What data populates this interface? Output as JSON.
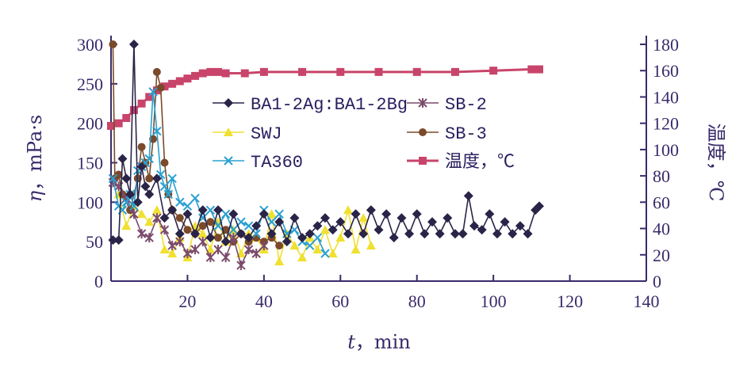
{
  "chart_data": {
    "type": "line",
    "xlabel_var": "t",
    "xlabel_unit": "min",
    "xlim": [
      0,
      140
    ],
    "x_ticks": [
      "20",
      "40",
      "60",
      "80",
      "100",
      "120",
      "140"
    ],
    "ylabel_var": "η",
    "ylabel_unit": "mPa·s",
    "ylim": [
      0,
      300
    ],
    "y_ticks": [
      "0",
      "50",
      "100",
      "150",
      "200",
      "250",
      "300"
    ],
    "y2label": "温度，℃",
    "y2lim": [
      0,
      180
    ],
    "y2_ticks": [
      "0",
      "20",
      "40",
      "60",
      "80",
      "100",
      "120",
      "140",
      "160",
      "180"
    ],
    "grid": false,
    "legend_position": "upper-center",
    "series": [
      {
        "name": "BA1-2Ag:BA1-2Bg",
        "marker": "diamond",
        "color": "#2a2448",
        "axis": "left",
        "x": [
          0.5,
          2,
          3,
          4,
          5,
          6,
          7,
          8,
          9,
          10,
          12,
          14,
          16,
          18,
          20,
          22,
          24,
          26,
          28,
          30,
          32,
          34,
          36,
          38,
          40,
          42,
          44,
          46,
          48,
          50,
          52,
          54,
          56,
          58,
          60,
          62,
          64,
          66,
          68,
          70,
          72,
          74,
          76,
          78,
          80,
          82,
          84,
          86,
          88,
          90,
          92,
          93.5,
          95,
          97,
          99,
          101,
          103,
          105,
          107,
          109,
          111,
          112
        ],
        "y": [
          52,
          52,
          155,
          130,
          110,
          300,
          100,
          145,
          120,
          110,
          130,
          80,
          90,
          60,
          85,
          60,
          90,
          55,
          90,
          50,
          85,
          60,
          55,
          70,
          85,
          60,
          75,
          50,
          80,
          55,
          60,
          70,
          80,
          65,
          75,
          60,
          85,
          60,
          90,
          65,
          85,
          55,
          80,
          60,
          85,
          60,
          75,
          60,
          80,
          60,
          60,
          108,
          70,
          65,
          85,
          60,
          75,
          60,
          70,
          60,
          90,
          95
        ]
      },
      {
        "name": "SB-2",
        "marker": "star",
        "color": "#7a4a6a",
        "axis": "left",
        "x": [
          0.5,
          2,
          4,
          6,
          8,
          10,
          12,
          14,
          16,
          18,
          20,
          22,
          24,
          26,
          28,
          30,
          32,
          34,
          36,
          38,
          40
        ],
        "y": [
          125,
          120,
          105,
          85,
          60,
          55,
          80,
          65,
          45,
          50,
          35,
          40,
          50,
          30,
          40,
          30,
          55,
          20,
          40,
          35,
          45
        ]
      },
      {
        "name": "SWJ",
        "marker": "triangle",
        "color": "#f0e030",
        "axis": "left",
        "x": [
          2,
          4,
          6,
          8,
          10,
          12,
          14,
          16,
          18,
          20,
          22,
          24,
          26,
          28,
          30,
          32,
          34,
          36,
          38,
          40,
          42,
          44,
          46,
          48,
          50,
          52,
          54,
          56,
          58,
          60,
          62,
          64,
          66,
          68
        ],
        "y": [
          110,
          70,
          95,
          85,
          75,
          90,
          40,
          35,
          55,
          30,
          70,
          60,
          40,
          75,
          50,
          65,
          35,
          60,
          55,
          40,
          85,
          25,
          60,
          45,
          30,
          55,
          40,
          65,
          35,
          55,
          90,
          40,
          80,
          45
        ]
      },
      {
        "name": "SB-3",
        "marker": "circle",
        "color": "#7a4a2a",
        "axis": "left",
        "x": [
          0.5,
          1,
          2,
          3,
          5,
          7,
          8,
          9,
          10,
          11,
          12,
          13,
          14,
          15,
          16,
          18,
          20,
          22,
          24,
          26,
          28,
          30,
          32,
          34,
          36,
          38,
          40,
          42,
          44
        ],
        "y": [
          300,
          130,
          135,
          110,
          90,
          130,
          170,
          150,
          130,
          180,
          265,
          245,
          150,
          110,
          90,
          80,
          65,
          60,
          70,
          75,
          55,
          65,
          50,
          60,
          50,
          55,
          50,
          55,
          45
        ]
      },
      {
        "name": "TA360",
        "marker": "x",
        "color": "#2aa0d0",
        "axis": "left",
        "x": [
          0.5,
          2,
          3,
          4,
          5,
          6,
          7,
          8,
          9,
          10,
          11,
          12,
          13,
          14,
          15,
          16,
          18,
          20,
          22,
          24,
          26,
          28,
          30,
          32,
          34,
          36,
          38,
          40,
          42,
          44,
          46,
          48,
          50,
          52,
          54,
          56
        ],
        "y": [
          130,
          95,
          90,
          100,
          110,
          95,
          140,
          145,
          150,
          155,
          240,
          190,
          135,
          120,
          110,
          130,
          100,
          95,
          105,
          80,
          90,
          70,
          85,
          65,
          75,
          70,
          60,
          90,
          75,
          85,
          60,
          65,
          50,
          45,
          55,
          35
        ]
      },
      {
        "name": "温度，℃",
        "marker": "square",
        "color": "#c8446a",
        "axis": "right",
        "x": [
          0,
          2,
          4,
          6,
          8,
          10,
          12,
          14,
          16,
          18,
          20,
          22,
          24,
          26,
          28,
          30,
          35,
          40,
          50,
          60,
          70,
          80,
          90,
          100,
          110,
          112
        ],
        "y": [
          118,
          120,
          124,
          130,
          135,
          140,
          145,
          148,
          150,
          152,
          154,
          156,
          158,
          159,
          159,
          158,
          158,
          159,
          159,
          159,
          159,
          159,
          159,
          160,
          161,
          161
        ]
      }
    ]
  }
}
